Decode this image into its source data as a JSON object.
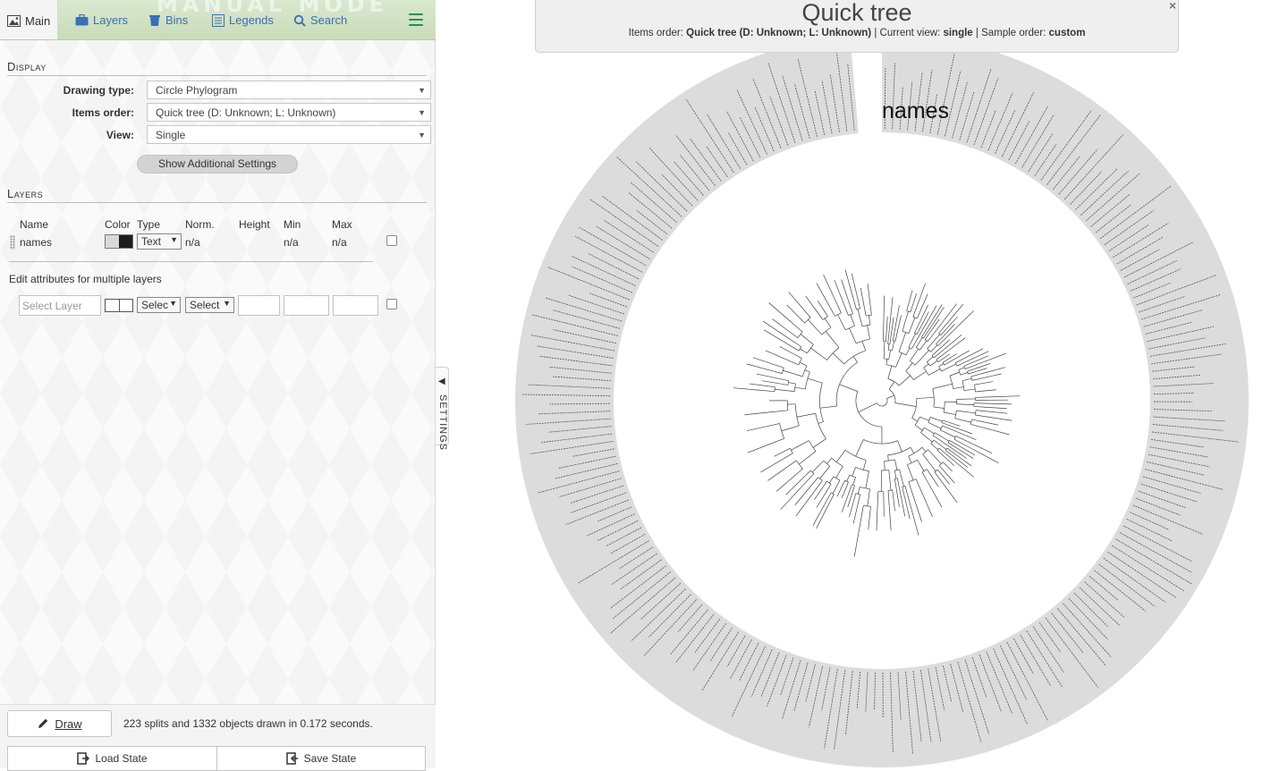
{
  "tabs": [
    {
      "label": "Main",
      "icon": "image-icon"
    },
    {
      "label": "Layers",
      "icon": "briefcase-icon"
    },
    {
      "label": "Bins",
      "icon": "bins-icon"
    },
    {
      "label": "Legends",
      "icon": "list-icon"
    },
    {
      "label": "Search",
      "icon": "search-icon"
    }
  ],
  "brand": "MANUAL MODE",
  "display": {
    "title": "Display",
    "drawing_type_label": "Drawing type:",
    "drawing_type_value": "Circle Phylogram",
    "items_order_label": "Items order:",
    "items_order_value": "Quick tree (D: Unknown; L: Unknown)",
    "view_label": "View:",
    "view_value": "Single",
    "additional_button": "Show Additional Settings"
  },
  "layers": {
    "title": "Layers",
    "columns": {
      "name": "Name",
      "color": "Color",
      "type": "Type",
      "norm": "Norm.",
      "height": "Height",
      "min": "Min",
      "max": "Max"
    },
    "rows": [
      {
        "name": "names",
        "type": "Text",
        "norm": "n/a",
        "min": "n/a",
        "max": "n/a",
        "color_a": "#d9d9d9",
        "color_b": "#1c1c1c"
      }
    ],
    "edit_title": "Edit attributes for multiple layers",
    "select_layer_placeholder": "Select Layer",
    "select_type": "Selec",
    "select_norm": "Select"
  },
  "bottom": {
    "draw_label": "Draw",
    "status": "223 splits and 1332 objects drawn in 0.172 seconds.",
    "load_state": "Load State",
    "save_state": "Save State"
  },
  "settings_toggle": "SETTINGS",
  "header": {
    "title": "Quick tree",
    "items_order_prefix": "Items order:",
    "items_order_value": "Quick tree (D: Unknown; L: Unknown)",
    "current_view_prefix": "| Current view:",
    "current_view_value": "single",
    "sample_order_prefix": "| Sample order:",
    "sample_order_value": "custom"
  },
  "tree_layer_label": "names",
  "colors": {
    "accent": "#3b6fb6",
    "tab_bar": "#d9e8cf",
    "ring": "#dcdcdc"
  }
}
